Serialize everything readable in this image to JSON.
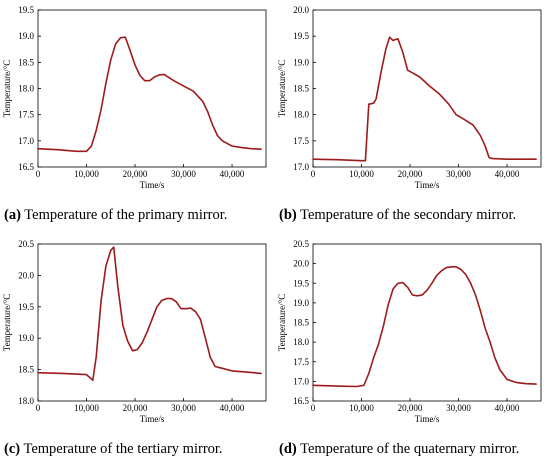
{
  "chart_data": [
    {
      "type": "line",
      "panel_id": "a",
      "caption_letter": "(a)",
      "caption": "Temperature of the primary mirror.",
      "xlabel": "Time/s",
      "ylabel": "Temperature/°C",
      "xlim": [
        0,
        47000
      ],
      "ylim": [
        16.5,
        19.5
      ],
      "xticks": [
        0,
        10000,
        20000,
        30000,
        40000
      ],
      "xtick_labels": [
        "0",
        "10,000",
        "20,000",
        "30,000",
        "40,000"
      ],
      "yticks": [
        16.5,
        17.0,
        17.5,
        18.0,
        18.5,
        19.0,
        19.5
      ],
      "ytick_labels": [
        "16.5",
        "17.0",
        "17.5",
        "18.0",
        "18.5",
        "19.0",
        "19.5"
      ],
      "color": "#9e1b1b",
      "series": [
        {
          "x": [
            0,
            4000,
            8000,
            10000,
            11000,
            12000,
            13000,
            14000,
            15000,
            16000,
            17000,
            18000,
            19000,
            20000,
            21000,
            22000,
            23000,
            24000,
            25000,
            26000,
            28000,
            30000,
            32000,
            34000,
            35000,
            36000,
            37000,
            38000,
            40000,
            42000,
            44000,
            46000
          ],
          "y": [
            16.85,
            16.83,
            16.8,
            16.8,
            16.9,
            17.2,
            17.6,
            18.1,
            18.55,
            18.85,
            18.97,
            18.98,
            18.72,
            18.45,
            18.25,
            18.15,
            18.15,
            18.22,
            18.26,
            18.27,
            18.15,
            18.05,
            17.95,
            17.75,
            17.55,
            17.3,
            17.1,
            17.0,
            16.9,
            16.87,
            16.85,
            16.84
          ]
        }
      ]
    },
    {
      "type": "line",
      "panel_id": "b",
      "caption_letter": "(b)",
      "caption": "Temperature of the secondary mirror.",
      "xlabel": "Time/s",
      "ylabel": "Temperature/°C",
      "xlim": [
        0,
        47000
      ],
      "ylim": [
        17.0,
        20.0
      ],
      "xticks": [
        0,
        10000,
        20000,
        30000,
        40000
      ],
      "xtick_labels": [
        "0",
        "10,000",
        "20,000",
        "30,000",
        "40,000"
      ],
      "yticks": [
        17.0,
        17.5,
        18.0,
        18.5,
        19.0,
        19.5,
        20.0
      ],
      "ytick_labels": [
        "17.0",
        "17.5",
        "18.0",
        "18.5",
        "19.0",
        "19.5",
        "20.0"
      ],
      "color": "#9e1b1b",
      "series": [
        {
          "x": [
            0,
            5000,
            10000,
            10800,
            11500,
            12500,
            13000,
            14000,
            15000,
            15800,
            16500,
            17500,
            18500,
            19500,
            20500,
            22000,
            24000,
            26000,
            28000,
            29500,
            31000,
            33000,
            34500,
            35500,
            36300,
            37000,
            40000,
            46000
          ],
          "y": [
            17.15,
            17.14,
            17.12,
            17.12,
            18.2,
            18.22,
            18.3,
            18.8,
            19.25,
            19.48,
            19.42,
            19.45,
            19.2,
            18.85,
            18.8,
            18.72,
            18.55,
            18.4,
            18.2,
            18.0,
            17.92,
            17.8,
            17.6,
            17.4,
            17.18,
            17.16,
            17.15,
            17.15
          ]
        }
      ]
    },
    {
      "type": "line",
      "panel_id": "c",
      "caption_letter": "(c)",
      "caption": "Temperature of the tertiary mirror.",
      "xlabel": "Time/s",
      "ylabel": "Temperature/°C",
      "xlim": [
        0,
        47000
      ],
      "ylim": [
        18.0,
        20.5
      ],
      "xticks": [
        0,
        10000,
        20000,
        30000,
        40000
      ],
      "xtick_labels": [
        "0",
        "10,000",
        "20,000",
        "30,000",
        "40,000"
      ],
      "yticks": [
        18.0,
        18.5,
        19.0,
        19.5,
        20.0,
        20.5
      ],
      "ytick_labels": [
        "18.0",
        "18.5",
        "19.0",
        "19.5",
        "20.0",
        "20.5"
      ],
      "color": "#9e1b1b",
      "series": [
        {
          "x": [
            0,
            5000,
            10000,
            11300,
            12000,
            13000,
            14000,
            15000,
            15600,
            16500,
            17500,
            18500,
            19500,
            20500,
            21500,
            22500,
            23500,
            24500,
            25500,
            26500,
            27500,
            28500,
            29500,
            30500,
            31500,
            32500,
            33500,
            34500,
            35500,
            36500,
            38000,
            40000,
            43000,
            46000
          ],
          "y": [
            18.45,
            18.44,
            18.42,
            18.33,
            18.7,
            19.6,
            20.15,
            20.4,
            20.45,
            19.8,
            19.2,
            18.95,
            18.8,
            18.82,
            18.93,
            19.1,
            19.3,
            19.5,
            19.6,
            19.63,
            19.63,
            19.58,
            19.47,
            19.47,
            19.48,
            19.42,
            19.3,
            19.0,
            18.7,
            18.55,
            18.52,
            18.48,
            18.46,
            18.44
          ]
        }
      ]
    },
    {
      "type": "line",
      "panel_id": "d",
      "caption_letter": "(d)",
      "caption": "Temperature of the quaternary mirror.",
      "xlabel": "Time/s",
      "ylabel": "Temperature/°C",
      "xlim": [
        0,
        47000
      ],
      "ylim": [
        16.5,
        20.5
      ],
      "xticks": [
        0,
        10000,
        20000,
        30000,
        40000
      ],
      "xtick_labels": [
        "0",
        "10,000",
        "20,000",
        "30,000",
        "40,000"
      ],
      "yticks": [
        16.5,
        17.0,
        17.5,
        18.0,
        18.5,
        19.0,
        19.5,
        20.0,
        20.5
      ],
      "ytick_labels": [
        "16.5",
        "17.0",
        "17.5",
        "18.0",
        "18.5",
        "19.0",
        "19.5",
        "20.0",
        "20.5"
      ],
      "color": "#9e1b1b",
      "series": [
        {
          "x": [
            0,
            5000,
            9000,
            10500,
            11500,
            12500,
            13500,
            14500,
            15500,
            16500,
            17500,
            18500,
            19500,
            20500,
            21500,
            22500,
            23500,
            24500,
            25500,
            26500,
            27500,
            28500,
            29500,
            30500,
            31500,
            32500,
            33500,
            34500,
            35500,
            36500,
            37500,
            38500,
            40000,
            42000,
            44000,
            46000
          ],
          "y": [
            16.9,
            16.88,
            16.87,
            16.9,
            17.2,
            17.6,
            17.95,
            18.4,
            18.95,
            19.35,
            19.5,
            19.52,
            19.4,
            19.2,
            19.18,
            19.2,
            19.32,
            19.5,
            19.7,
            19.82,
            19.9,
            19.92,
            19.92,
            19.85,
            19.72,
            19.5,
            19.2,
            18.8,
            18.35,
            18.0,
            17.6,
            17.3,
            17.05,
            16.97,
            16.94,
            16.93
          ]
        }
      ]
    }
  ]
}
